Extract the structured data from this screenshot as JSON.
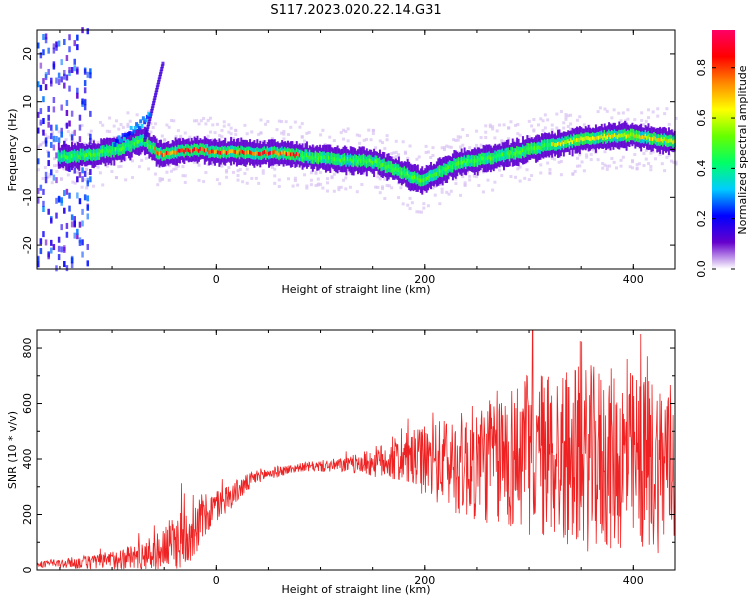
{
  "title": "S117.2023.020.22.14.G31",
  "chart_data": [
    {
      "type": "heatmap",
      "xlabel": "Height of straight line (km)",
      "ylabel": "Frequency (Hz)",
      "xlim": [
        -172,
        440
      ],
      "ylim": [
        -25,
        25
      ],
      "xticks": [
        0,
        200,
        400
      ],
      "yticks": [
        -20,
        -10,
        0,
        10,
        20
      ],
      "colorbar": {
        "label": "Normalized spectral amplitude",
        "range": [
          0,
          0.95
        ],
        "ticks": [
          0.0,
          0.2,
          0.4,
          0.6,
          0.8
        ],
        "colormap": [
          "#ffffff",
          "#6600cc",
          "#0000ff",
          "#00ccff",
          "#00ff66",
          "#66ff00",
          "#ffff00",
          "#ff8800",
          "#ff0000",
          "#ff0066"
        ]
      },
      "ridge": {
        "description_points": [
          {
            "x": -145,
            "y": -1.5
          },
          {
            "x": -120,
            "y": -1.0
          },
          {
            "x": -95,
            "y": 0.0
          },
          {
            "x": -70,
            "y": 2.0
          },
          {
            "x": -55,
            "y": -1.0
          },
          {
            "x": -20,
            "y": 0.0
          },
          {
            "x": 0,
            "y": -0.5
          },
          {
            "x": 60,
            "y": -0.8
          },
          {
            "x": 100,
            "y": -1.8
          },
          {
            "x": 150,
            "y": -2.5
          },
          {
            "x": 180,
            "y": -5.0
          },
          {
            "x": 195,
            "y": -6.5
          },
          {
            "x": 230,
            "y": -3.0
          },
          {
            "x": 280,
            "y": -1.0
          },
          {
            "x": 320,
            "y": 1.0
          },
          {
            "x": 360,
            "y": 2.5
          },
          {
            "x": 400,
            "y": 3.0
          },
          {
            "x": 440,
            "y": 1.5
          }
        ]
      }
    },
    {
      "type": "line",
      "xlabel": "Height of straight line (km)",
      "ylabel": "SNR (10 * v/v)",
      "xlim": [
        -172,
        440
      ],
      "ylim": [
        0,
        865
      ],
      "xticks": [
        0,
        200,
        400
      ],
      "yticks": [
        0,
        200,
        400,
        600,
        800
      ],
      "series_color": "#ee2222",
      "envelope": [
        {
          "x": -172,
          "base": 20,
          "spread": 10
        },
        {
          "x": -110,
          "base": 30,
          "spread": 30
        },
        {
          "x": -60,
          "base": 60,
          "spread": 60
        },
        {
          "x": -30,
          "base": 120,
          "spread": 120
        },
        {
          "x": 0,
          "base": 230,
          "spread": 60
        },
        {
          "x": 40,
          "base": 340,
          "spread": 25
        },
        {
          "x": 80,
          "base": 370,
          "spread": 15
        },
        {
          "x": 130,
          "base": 380,
          "spread": 30
        },
        {
          "x": 180,
          "base": 400,
          "spread": 90
        },
        {
          "x": 240,
          "base": 380,
          "spread": 200
        },
        {
          "x": 300,
          "base": 420,
          "spread": 300
        },
        {
          "x": 360,
          "base": 400,
          "spread": 340
        },
        {
          "x": 440,
          "base": 380,
          "spread": 320
        }
      ]
    }
  ]
}
